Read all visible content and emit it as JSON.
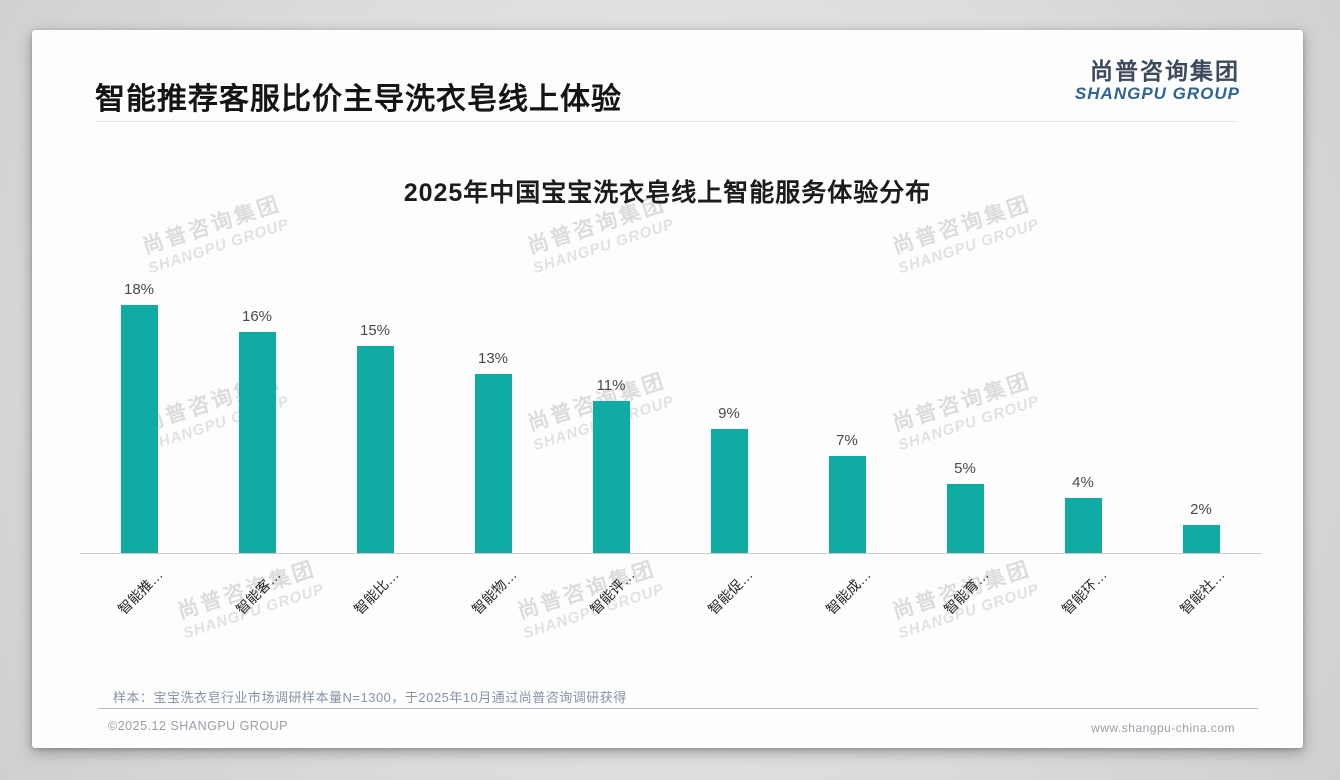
{
  "header": {
    "title": "智能推荐客服比价主导洗衣皂线上体验",
    "logo": {
      "zh": "尚普咨询集团",
      "en": "SHANGPU GROUP"
    }
  },
  "watermark": {
    "zh": "尚普咨询集团",
    "en": "SHANGPU GROUP"
  },
  "chart_data": {
    "type": "bar",
    "title": "2025年中国宝宝洗衣皂线上智能服务体验分布",
    "categories": [
      "智能推…",
      "智能客…",
      "智能比…",
      "智能物…",
      "智能评…",
      "智能促…",
      "智能成…",
      "智能育…",
      "智能环…",
      "智能社…"
    ],
    "values": [
      18,
      16,
      15,
      13,
      11,
      9,
      7,
      5,
      4,
      2
    ],
    "value_labels": [
      "18%",
      "16%",
      "15%",
      "13%",
      "11%",
      "9%",
      "7%",
      "5%",
      "4%",
      "2%"
    ],
    "unit": "%",
    "ylim": [
      0,
      20
    ],
    "bar_color": "#10ACA4",
    "grid": false,
    "legend": false,
    "x_labels_rotated_deg": 45
  },
  "footnote": "样本：宝宝洗衣皂行业市场调研样本量N=1300，于2025年10月通过尚普咨询调研获得",
  "footer": {
    "copyright": "©2025.12 SHANGPU GROUP",
    "url": "www.shangpu-china.com"
  }
}
